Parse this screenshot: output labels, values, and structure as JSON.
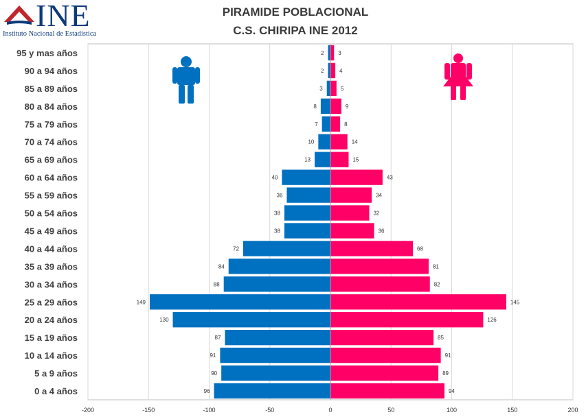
{
  "logo": {
    "brand": "INE",
    "subtitle": "Instituto Nacional de Estadística",
    "accent_color": "#c0272d"
  },
  "chart_data": {
    "type": "bar",
    "orientation": "horizontal-population-pyramid",
    "title": "PIRAMIDE POBLACIONAL",
    "subtitle": "C.S. CHIRIPA INE 2012",
    "categories": [
      "95 y mas años",
      "90 a 94 años",
      "85 a 89 años",
      "80 a 84 años",
      "75 a 79 años",
      "70 a 74 años",
      "65 a 69 años",
      "60 a 64 años",
      "55 a 59 años",
      "50 a 54 años",
      "45 a 49 años",
      "40 a 44 años",
      "35 a 39 años",
      "30 a 34 años",
      "25 a 29 años",
      "20 a 24 años",
      "15 a 19 años",
      "10 a 14 años",
      "5 a 9 años",
      "0 a 4 años"
    ],
    "series": [
      {
        "values": [
          -2,
          -2,
          -3,
          -8,
          -7,
          -10,
          -13,
          -40,
          -36,
          -38,
          -38,
          -72,
          -84,
          -88,
          -149,
          -130,
          -87,
          -91,
          -90,
          -96
        ],
        "labels": [
          "2",
          "2",
          "3",
          "8",
          "7",
          "10",
          "13",
          "40",
          "36",
          "38",
          "38",
          "72",
          "84",
          "88",
          "149",
          "130",
          "87",
          "91",
          "90",
          "96"
        ],
        "color": "#0070c0",
        "icon": "male-icon"
      },
      {
        "values": [
          3,
          4,
          5,
          9,
          8,
          14,
          15,
          43,
          34,
          32,
          36,
          68,
          81,
          82,
          145,
          126,
          85,
          91,
          89,
          94
        ],
        "labels": [
          "3",
          "4",
          "5",
          "9",
          "8",
          "14",
          "15",
          "43",
          "34",
          "32",
          "36",
          "68",
          "81",
          "82",
          "145",
          "126",
          "85",
          "91",
          "89",
          "94"
        ],
        "color": "#ff0066",
        "icon": "female-icon"
      }
    ],
    "xlim": [
      -200,
      200
    ],
    "xticks": [
      "-200",
      "-150",
      "-100",
      "-50",
      "0",
      "50",
      "100",
      "150",
      "200"
    ],
    "grid": true,
    "legend": "none"
  }
}
